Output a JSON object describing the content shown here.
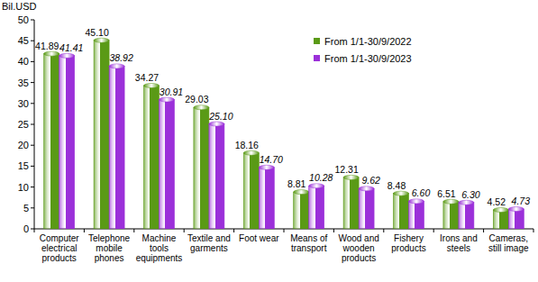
{
  "chart_data": {
    "type": "bar",
    "y_label": "Bil.USD",
    "categories": [
      "Computer electrical products",
      "Telephone mobile phones",
      "Machine tools equipments",
      "Textile and garments",
      "Foot wear",
      "Means of transport",
      "Wood and wooden products",
      "Fishery products",
      "Irons and steels",
      "Cameras, still image"
    ],
    "series": [
      {
        "name": "From 1/1-30/9/2022",
        "color": "#5a9a16",
        "values": [
          41.89,
          45.1,
          34.27,
          29.03,
          18.16,
          8.81,
          12.31,
          8.48,
          6.51,
          4.52
        ],
        "value_labels": [
          "41.89",
          "45.10",
          "34.27",
          "29.03",
          "18.16",
          "8.81",
          "12.31",
          "8.48",
          "6.51",
          "4.52"
        ]
      },
      {
        "name": "From 1/1-30/9/2023",
        "color": "#9b30d9",
        "values": [
          41.41,
          38.92,
          30.91,
          25.1,
          14.7,
          10.28,
          9.62,
          6.6,
          6.3,
          4.73
        ],
        "value_labels": [
          "41.41",
          "38.92",
          "30.91",
          "25.10",
          "14.70",
          "10.28",
          "9.62",
          "6.60",
          "6.30",
          "4.73"
        ]
      }
    ],
    "ylim": [
      0,
      50
    ],
    "yticks": [
      0,
      5,
      10,
      15,
      20,
      25,
      30,
      35,
      40,
      45,
      50
    ],
    "grid": false,
    "legend": "upper-right",
    "data_labels": true
  }
}
